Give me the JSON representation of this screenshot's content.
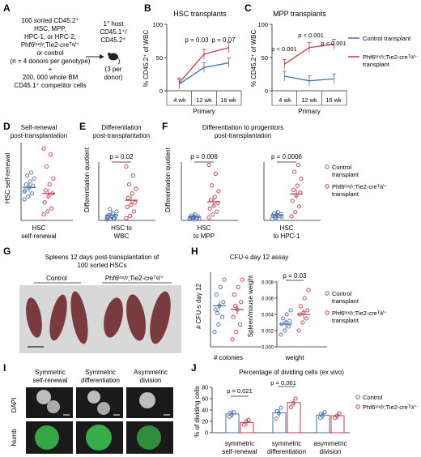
{
  "colors": {
    "control": "#4a6fa5",
    "phf": "#c0394b",
    "spleen": "#7a3b3f",
    "bg_dark": "#1a1a1a",
    "numb_green": "#3bbf4f"
  },
  "panelA": {
    "letter": "A",
    "lines": [
      "100 sorted CD45.2⁺",
      "HSC, MPP,",
      "HPC-1, or HPC-2,",
      "Phf6ˡᵒˣ/ʸ;Tie2-creᵀᵍ/⁺",
      "or control",
      "(n = 4 donors per genotype)",
      "+",
      "200, 000 whole BM",
      "CD45.1⁺ competitor cells"
    ],
    "host": [
      "1° host",
      "CD45.1⁺/",
      "CD45.2⁺",
      "(3 per",
      "donor)"
    ]
  },
  "panelB": {
    "letter": "B",
    "title": "HSC transplants",
    "ylabel": "% CD45.2⁺ of WBC",
    "xlabel": "Primary",
    "ticks": [
      "4 wk",
      "12 wk",
      "16 wk"
    ],
    "yticks": [
      "0",
      "50",
      "100"
    ],
    "pvals": [
      "p = 0.03",
      "p = 0.07"
    ]
  },
  "panelC": {
    "letter": "C",
    "title": "MPP transplants",
    "ylabel": "% CD45.2⁺ of WBC",
    "xlabel": "Primary",
    "ticks": [
      "4 wk",
      "12 wk",
      "16 wk"
    ],
    "yticks": [
      "0",
      "50",
      "100"
    ],
    "pvals": [
      "p < 0.001",
      "p < 0.001",
      "p < 0.001"
    ]
  },
  "legendTop": {
    "control": "Control transplant",
    "phf": "Phf6ˡᵒˣ/ʸ;Tie2-creᵀᵍ/⁺ transplant"
  },
  "panelD": {
    "letter": "D",
    "title": [
      "Self-renewal",
      "post-transplantation"
    ],
    "ylabel": "HSC self-renewal",
    "xlabel": [
      "HSC",
      "self-renewal"
    ]
  },
  "panelE": {
    "letter": "E",
    "title": [
      "Differentiation",
      "post-transplantation"
    ],
    "ylabel": "Differentiation quotient",
    "xlabel": [
      "HSC to",
      "WBC"
    ],
    "pval": "p = 0.02"
  },
  "panelF": {
    "letter": "F",
    "title": [
      "Differentiation to progenitors",
      "post-transplantation"
    ],
    "ylabel": "Differentiation quotient",
    "left": {
      "xlabel": [
        "HSC",
        "to MPP"
      ],
      "pval": "p = 0.006"
    },
    "right": {
      "xlabel": [
        "HSC",
        "to HPC-1"
      ],
      "pval": "p = 0.0006"
    },
    "legend": {
      "control": [
        "Control",
        "transplant"
      ],
      "phf": [
        "Phf6ˡᵒˣ/ʸ;Tie2-creᵀᵍ/⁺",
        "transplant"
      ]
    }
  },
  "panelG": {
    "letter": "G",
    "title": [
      "Spleens 12 days post-transplantation of",
      "100 sorted HSCs"
    ],
    "labels": [
      "Control",
      "Phf6ˡᵒˣ/ʸ;Tie2-creᵀᵍ/⁺"
    ]
  },
  "panelH": {
    "letter": "H",
    "title": "CFU-s day 12 assay",
    "ylabel_left": "# CFU-s day 12",
    "ylabel_right": "Spleen/mouse weight",
    "xlabel_left": "# colonies",
    "xlabel_right": "weight",
    "pval": "p = 0.03",
    "yticks_right": [
      "0.000",
      "0.002",
      "0.004",
      "0.006",
      "0.008"
    ],
    "legend": {
      "control": [
        "Control",
        "transplant"
      ],
      "phf": [
        "Phf6ˡᵒˣ/ʸ;Tie2-creᵀᵍ/⁺",
        "transplant"
      ]
    }
  },
  "panelI": {
    "letter": "I",
    "cols": [
      [
        "Symmetric",
        "self-renewal"
      ],
      [
        "Symmetric",
        "differentiation"
      ],
      [
        "Asymmetric",
        "division"
      ]
    ],
    "rows": [
      "DAPI",
      "Numb"
    ]
  },
  "panelJ": {
    "letter": "J",
    "title": "Percentage of dividing cells (ex vivo)",
    "ylabel": "% of dividing cells",
    "yticks": [
      "0",
      "20",
      "40",
      "60",
      "80"
    ],
    "groups": [
      [
        "symmetric",
        "self-renewal"
      ],
      [
        "symmetric",
        "differentiation"
      ],
      [
        "asymmetric",
        "division"
      ]
    ],
    "pvals": [
      "p = 0.021",
      "p = 0.061"
    ],
    "legend": {
      "control": "Control",
      "phf": "Phf6ˡᵒˣ/ʸ;Tie2-creᵀᵍ/⁺"
    }
  },
  "chart_data": [
    {
      "type": "line",
      "title": "HSC transplants",
      "x": [
        "4 wk",
        "12 wk",
        "16 wk"
      ],
      "ylabel": "% CD45.2⁺ of WBC",
      "ylim": [
        0,
        100
      ],
      "series": [
        {
          "name": "Control transplant",
          "values": [
            10,
            35,
            42
          ]
        },
        {
          "name": "Phf6ˡᵒˣ/ʸ;Tie2-creᵀᵍ/⁺ transplant",
          "values": [
            12,
            55,
            65
          ]
        }
      ]
    },
    {
      "type": "line",
      "title": "MPP transplants",
      "x": [
        "4 wk",
        "12 wk",
        "16 wk"
      ],
      "ylabel": "% CD45.2⁺ of WBC",
      "ylim": [
        0,
        100
      ],
      "series": [
        {
          "name": "Control transplant",
          "values": [
            22,
            15,
            18
          ]
        },
        {
          "name": "Phf6ˡᵒˣ/ʸ;Tie2-creᵀᵍ/⁺ transplant",
          "values": [
            40,
            65,
            70
          ]
        }
      ]
    },
    {
      "type": "scatter",
      "title": "Self-renewal post-transplantation",
      "ylabel": "HSC self-renewal",
      "series": [
        {
          "name": "Control transplant",
          "mean": 55,
          "points": [
            35,
            40,
            45,
            50,
            55,
            58,
            60,
            65,
            70,
            75,
            80,
            48
          ]
        },
        {
          "name": "Phf6ˡᵒˣ/ʸ;Tie2-creᵀᵍ/⁺ transplant",
          "mean": 45,
          "points": [
            10,
            15,
            20,
            30,
            40,
            45,
            50,
            60,
            70,
            90,
            110,
            120
          ]
        }
      ]
    },
    {
      "type": "scatter",
      "title": "Differentiation post-transplantation",
      "ylabel": "Differentiation quotient",
      "series": [
        {
          "name": "Control transplant",
          "mean": 1.2,
          "points": [
            0.2,
            0.3,
            0.5,
            0.6,
            0.8,
            1.0,
            1.2,
            1.5,
            2.0,
            2.5,
            0.4,
            0.7
          ]
        },
        {
          "name": "Phf6ˡᵒˣ/ʸ;Tie2-creᵀᵍ/⁺ transplant",
          "mean": 4.5,
          "points": [
            0.5,
            1,
            2,
            3,
            3.5,
            4,
            5,
            6,
            7,
            8,
            10,
            12
          ]
        }
      ]
    },
    {
      "type": "scatter",
      "title": "HSC to MPP",
      "series": [
        {
          "name": "Control transplant",
          "mean": 0.6,
          "points": [
            0.2,
            0.3,
            0.4,
            0.5,
            0.6,
            0.7,
            0.8,
            1.0,
            0.3,
            0.5
          ]
        },
        {
          "name": "Phf6ˡᵒˣ/ʸ;Tie2-creᵀᵍ/⁺ transplant",
          "mean": 3.2,
          "points": [
            0.5,
            1,
            1.5,
            2,
            2.5,
            3,
            3.5,
            4,
            5,
            6,
            8,
            9.5
          ]
        }
      ]
    },
    {
      "type": "scatter",
      "title": "HSC to HPC-1",
      "series": [
        {
          "name": "Control transplant",
          "mean": 4,
          "points": [
            1,
            2,
            3,
            3.5,
            4,
            4.5,
            5,
            6,
            2.5,
            3
          ]
        },
        {
          "name": "Phf6ˡᵒˣ/ʸ;Tie2-creᵀᵍ/⁺ transplant",
          "mean": 19,
          "points": [
            3,
            6,
            10,
            14,
            18,
            20,
            22,
            25,
            30,
            35,
            40
          ]
        }
      ]
    },
    {
      "type": "scatter",
      "title": "CFU-s day 12 assay",
      "ylabel": "# CFU-s day 12",
      "series": [
        {
          "name": "Control transplant",
          "mean": 5.5,
          "points": [
            2,
            3,
            4,
            5,
            5.5,
            6,
            7,
            8,
            9,
            4.5
          ]
        },
        {
          "name": "Phf6ˡᵒˣ/ʸ;Tie2-creᵀᵍ/⁺ transplant",
          "mean": 5,
          "points": [
            1,
            2,
            3,
            4,
            5,
            6,
            7,
            8,
            9,
            5.5
          ]
        }
      ]
    },
    {
      "type": "scatter",
      "ylabel": "Spleen/mouse weight",
      "ylim": [
        0,
        0.008
      ],
      "series": [
        {
          "name": "Control transplant",
          "mean": 0.0028,
          "points": [
            0.0015,
            0.002,
            0.0025,
            0.0028,
            0.003,
            0.0032,
            0.0035,
            0.004,
            0.0045
          ]
        },
        {
          "name": "Phf6ˡᵒˣ/ʸ;Tie2-creᵀᵍ/⁺ transplant",
          "mean": 0.004,
          "points": [
            0.002,
            0.003,
            0.0035,
            0.004,
            0.0042,
            0.0045,
            0.005,
            0.006,
            0.007
          ]
        }
      ]
    },
    {
      "type": "bar",
      "title": "Percentage of dividing cells (ex vivo)",
      "ylabel": "% of dividing cells",
      "ylim": [
        0,
        80
      ],
      "categories": [
        "symmetric self-renewal",
        "symmetric differentiation",
        "asymmetric division"
      ],
      "series": [
        {
          "name": "Control",
          "values": [
            33,
            35,
            31
          ],
          "points": [
            [
              28,
              32,
              36,
              35
            ],
            [
              25,
              34,
              44,
              38
            ],
            [
              26,
              30,
              36,
              33
            ]
          ]
        },
        {
          "name": "Phf6ˡᵒˣ/ʸ;Tie2-creᵀᵍ/⁺",
          "values": [
            18,
            53,
            30
          ],
          "points": [
            [
              14,
              20,
              22
            ],
            [
              45,
              52,
              60
            ],
            [
              26,
              30,
              34
            ]
          ]
        }
      ]
    }
  ]
}
